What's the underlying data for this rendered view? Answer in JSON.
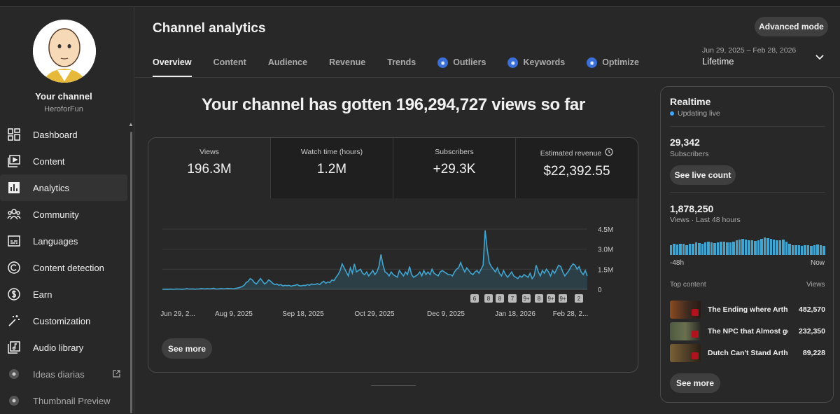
{
  "channel": {
    "title": "Your channel",
    "handle": "HeroforFun"
  },
  "sidebar": {
    "items": [
      {
        "label": "Dashboard",
        "icon": "dashboard-icon"
      },
      {
        "label": "Content",
        "icon": "content-icon"
      },
      {
        "label": "Analytics",
        "icon": "analytics-icon",
        "active": true
      },
      {
        "label": "Community",
        "icon": "community-icon"
      },
      {
        "label": "Languages",
        "icon": "languages-icon"
      },
      {
        "label": "Content detection",
        "icon": "copyright-icon"
      },
      {
        "label": "Earn",
        "icon": "dollar-icon"
      },
      {
        "label": "Customization",
        "icon": "magic-wand-icon"
      },
      {
        "label": "Audio library",
        "icon": "audio-library-icon"
      },
      {
        "label": "Ideas diarias",
        "icon": "extension-icon",
        "external": true
      },
      {
        "label": "Thumbnail Preview",
        "icon": "extension-icon"
      }
    ]
  },
  "header": {
    "title": "Channel analytics",
    "advanced_mode": "Advanced mode",
    "date_range": "Jun 29, 2025 – Feb 28, 2026",
    "date_value": "Lifetime",
    "tabs": [
      {
        "label": "Overview",
        "active": true
      },
      {
        "label": "Content"
      },
      {
        "label": "Audience"
      },
      {
        "label": "Revenue"
      },
      {
        "label": "Trends"
      },
      {
        "label": "Outliers",
        "badge": true
      },
      {
        "label": "Keywords",
        "badge": true
      },
      {
        "label": "Optimize",
        "badge": true
      }
    ]
  },
  "main": {
    "headline": "Your channel has gotten 196,294,727 views so far",
    "metrics": [
      {
        "label": "Views",
        "value": "196.3M"
      },
      {
        "label": "Watch time (hours)",
        "value": "1.2M"
      },
      {
        "label": "Subscribers",
        "value": "+29.3K"
      },
      {
        "label": "Estimated revenue",
        "value": "$22,392.55"
      }
    ],
    "see_more": "See more"
  },
  "chart_data": {
    "type": "area",
    "ytick_labels": [
      "4.5M",
      "3.0M",
      "1.5M",
      "0"
    ],
    "ylim": [
      0,
      4500000
    ],
    "xtick_labels": [
      "Jun 29, 2...",
      "Aug 9, 2025",
      "Sep 18, 2025",
      "Oct 29, 2025",
      "Dec 9, 2025",
      "Jan 18, 2026",
      "Feb 28, 2..."
    ],
    "series_color": "#41a5d0",
    "values": [
      5000,
      5000,
      10000,
      5000,
      15000,
      5000,
      10000,
      20000,
      15000,
      10000,
      5000,
      20000,
      50000,
      20000,
      20000,
      30000,
      10000,
      20000,
      30000,
      60000,
      40000,
      30000,
      60000,
      30000,
      50000,
      80000,
      30000,
      20000,
      40000,
      60000,
      30000,
      50000,
      70000,
      60000,
      50000,
      30000,
      80000,
      100000,
      150000,
      200000,
      300000,
      500000,
      600000,
      800000,
      700000,
      500000,
      400000,
      600000,
      800000,
      600000,
      400000,
      500000,
      700000,
      600000,
      450000,
      350000,
      400000,
      300000,
      350000,
      250000,
      300000,
      270000,
      300000,
      230000,
      280000,
      300000,
      350000,
      270000,
      250000,
      300000,
      280000,
      350000,
      300000,
      400000,
      350000,
      380000,
      420000,
      350000,
      500000,
      600000,
      450000,
      550000,
      500000,
      700000,
      650000,
      900000,
      1100000,
      1400000,
      1900000,
      1600000,
      1300000,
      1000000,
      1600000,
      1200000,
      1900000,
      1300000,
      1400000,
      1500000,
      1200000,
      1100000,
      1300000,
      1000000,
      1200000,
      1400000,
      1100000,
      1300000,
      1700000,
      2600000,
      1800000,
      1300000,
      1200000,
      1000000,
      1300000,
      1100000,
      1000000,
      900000,
      1400000,
      1200000,
      1000000,
      1300000,
      1100000,
      1700000,
      1100000,
      900000,
      1000000,
      1100000,
      1300000,
      1000000,
      1400000,
      1100000,
      1300000,
      1100000,
      1500000,
      1200000,
      1100000,
      1000000,
      1300000,
      1400000,
      1300000,
      1200000,
      1100000,
      1100000,
      1000000,
      1300000,
      1500000,
      1600000,
      2000000,
      1600000,
      1300000,
      1600000,
      1400000,
      1200000,
      1100000,
      1300000,
      1400000,
      1200000,
      1500000,
      1800000,
      4400000,
      3000000,
      2000000,
      1700000,
      1500000,
      1300000,
      1600000,
      1200000,
      1000000,
      1400000,
      1100000,
      900000,
      1100000,
      1300000,
      1000000,
      900000,
      800000,
      1000000,
      900000,
      1100000,
      1000000,
      900000,
      1200000,
      800000,
      1000000,
      1800000,
      1300000,
      1000000,
      1400000,
      1200000,
      1500000,
      1300000,
      1000000,
      1400000,
      1200000,
      1500000,
      1800000,
      1700000,
      1300000,
      1000000,
      1200000,
      1400000,
      1700000,
      1900000,
      1800000,
      1500000,
      1700000,
      1300000,
      1100000,
      1400000,
      1000000
    ],
    "markers": [
      "6",
      "8",
      "8",
      "7",
      "9+",
      "8",
      "9+",
      "9+",
      "2"
    ]
  },
  "realtime": {
    "title": "Realtime",
    "status": "Updating live",
    "subscribers_value": "29,342",
    "subscribers_label": "Subscribers",
    "see_live": "See live count",
    "views_value": "1,878,250",
    "views_label": "Views · Last 48 hours",
    "bars": [
      0.55,
      0.6,
      0.58,
      0.62,
      0.6,
      0.55,
      0.6,
      0.62,
      0.7,
      0.65,
      0.6,
      0.7,
      0.72,
      0.68,
      0.65,
      0.7,
      0.75,
      0.72,
      0.7,
      0.68,
      0.72,
      0.8,
      0.85,
      0.9,
      0.85,
      0.82,
      0.8,
      0.78,
      0.82,
      0.9,
      0.95,
      0.92,
      0.9,
      0.85,
      0.82,
      0.8,
      0.85,
      0.75,
      0.6,
      0.55,
      0.52,
      0.55,
      0.5,
      0.52,
      0.55,
      0.5,
      0.55,
      0.58,
      0.55,
      0.5
    ],
    "axis_left": "-48h",
    "axis_right": "Now",
    "top_label": "Top content",
    "top_views_label": "Views",
    "top": [
      {
        "title": "The Ending where Arthur Morgan...",
        "views": "482,570",
        "color": "#7a4a2a"
      },
      {
        "title": "The NPC that Almost got...",
        "views": "232,350",
        "color": "#556045"
      },
      {
        "title": "Dutch Can't Stand Arthur...",
        "views": "89,228",
        "color": "#6b5535"
      }
    ],
    "see_more": "See more"
  }
}
